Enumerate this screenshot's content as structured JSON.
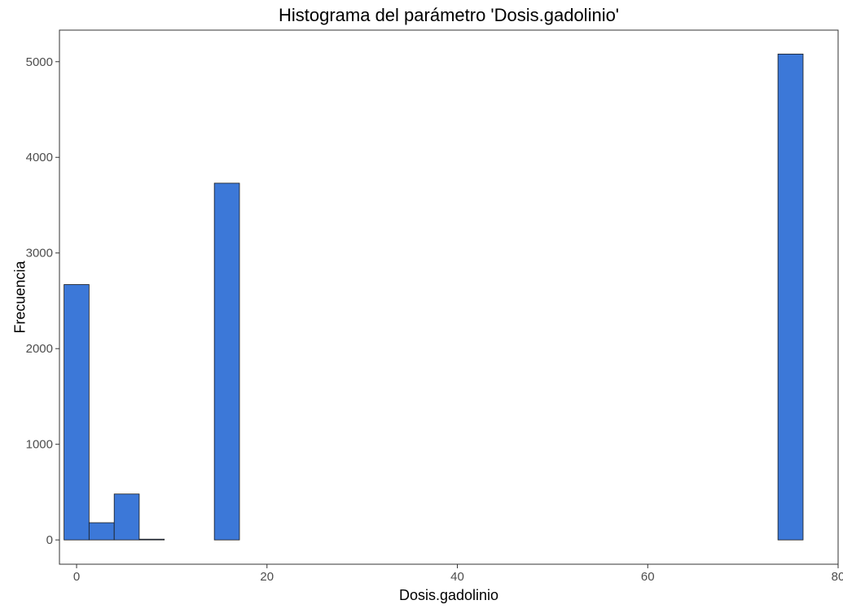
{
  "chart_data": {
    "type": "bar",
    "title": "Histograma del parámetro 'Dosis.gadolinio'",
    "xlabel": "Dosis.gadolinio",
    "ylabel": "Frecuencia",
    "xlim": [
      -1.8,
      80
    ],
    "ylim": [
      -254,
      5330
    ],
    "x_ticks": [
      0,
      20,
      40,
      60,
      80
    ],
    "y_ticks": [
      0,
      1000,
      2000,
      3000,
      4000,
      5000
    ],
    "bin_width": 2.63,
    "grid": false,
    "bar_color": "#3c78d8",
    "bar_outline": "#1a1a1a",
    "bins": [
      {
        "x0": -1.32,
        "x1": 1.31,
        "count": 2670
      },
      {
        "x0": 1.31,
        "x1": 3.95,
        "count": 180
      },
      {
        "x0": 3.95,
        "x1": 6.58,
        "count": 480
      },
      {
        "x0": 6.58,
        "x1": 9.21,
        "count": 8
      },
      {
        "x0": 9.21,
        "x1": 11.84,
        "count": 0
      },
      {
        "x0": 11.84,
        "x1": 14.47,
        "count": 0
      },
      {
        "x0": 14.47,
        "x1": 17.11,
        "count": 3730
      },
      {
        "x0": 17.11,
        "x1": 73.68,
        "count": 0
      },
      {
        "x0": 73.68,
        "x1": 76.32,
        "count": 5080
      }
    ]
  }
}
